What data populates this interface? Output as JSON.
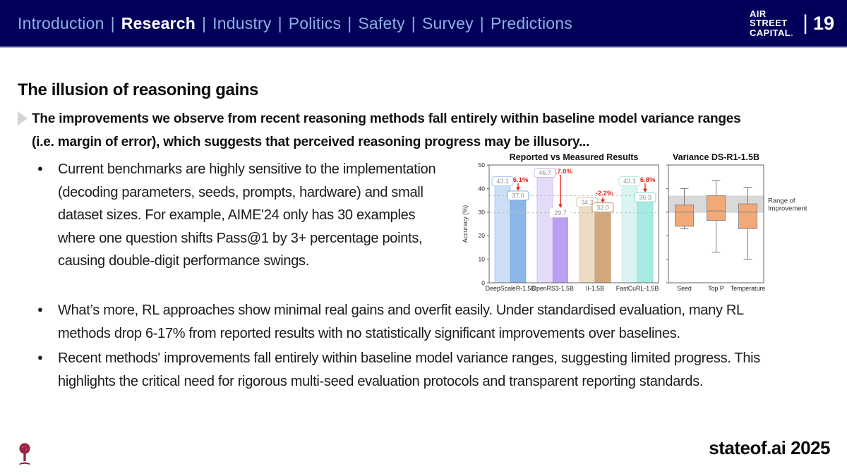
{
  "nav": {
    "items": [
      {
        "label": "Introduction",
        "active": false
      },
      {
        "label": "Research",
        "active": true
      },
      {
        "label": "Industry",
        "active": false
      },
      {
        "label": "Politics",
        "active": false
      },
      {
        "label": "Safety",
        "active": false
      },
      {
        "label": "Survey",
        "active": false
      },
      {
        "label": "Predictions",
        "active": false
      }
    ],
    "separator": "|",
    "logo_lines": [
      "AIR",
      "STREET",
      "CAPITAL"
    ],
    "logo_dot": ".",
    "page_sep": "|",
    "page_number": "19"
  },
  "slide": {
    "title": "The illusion of reasoning gains",
    "subtitle_lines": [
      "The improvements we observe from recent reasoning methods fall entirely within baseline model variance ranges",
      "(i.e. margin of error), which suggests that perceived reasoning progress may be illusory..."
    ],
    "bullets": [
      "Current benchmarks are highly sensitive to the implementation (decoding parameters, seeds, prompts, hardware) and small dataset sizes. For example, AIME'24 only has 30 examples where one question shifts Pass@1 by 3+ percentage points, causing double-digit performance swings.",
      "What’s more, RL approaches show minimal real gains and overfit easily. Under standardised evaluation, many RL methods drop 6-17% from reported results with no statistically significant improvements over baselines.",
      "Recent methods' improvements fall entirely within baseline model variance ranges, suggesting limited progress. This highlights the critical need for rigorous multi-seed evaluation protocols and transparent reporting standards."
    ]
  },
  "footer": {
    "brand": "stateof.ai 2025"
  },
  "colors": {
    "navbar_bg": "#01015a",
    "nav_inactive": "#8fafe4",
    "nav_active": "#ffffff",
    "logo_dot_orange": "#f0a132",
    "delta_red": "#e92318",
    "band_gray": "#d9d9d9",
    "box_fill": "#f2a977",
    "box_edge": "#8a8a8a",
    "whisker": "#777777",
    "tree_logo": "#9b2242"
  },
  "chart_data": [
    {
      "type": "bar",
      "title": "Reported vs Measured Results",
      "ylabel": "Accuracy (%)",
      "ylim": [
        0,
        50
      ],
      "yticks": [
        0,
        10,
        20,
        30,
        40,
        50
      ],
      "categories": [
        "DeepScaleR-1.5B",
        "OpenRS3-1.5B",
        "II-1.5B",
        "FastCuRL-1.5B"
      ],
      "series": [
        {
          "name": "Reported",
          "values": [
            43.1,
            46.7,
            34.2,
            43.1
          ]
        },
        {
          "name": "Measured",
          "values": [
            37.0,
            29.7,
            32.0,
            36.3
          ]
        }
      ],
      "deltas": [
        "-6.1%",
        "-17.0%",
        "-2.2%",
        "-6.8%"
      ],
      "dashed_lines": [
        37.0,
        29.7
      ],
      "colors": {
        "reported_fill": [
          "#cbdff5",
          "#e5dcf9",
          "#eddcc4",
          "#daf4f1"
        ],
        "reported_edge": [
          "#a8c8ee",
          "#cbbaf3",
          "#ddc298",
          "#b5eae3"
        ],
        "measured_fill": [
          "#8cb6e9",
          "#bb9ff2",
          "#d1a87b",
          "#a6ebe3"
        ],
        "measured_edge": [
          "#79a7dd",
          "#a械88ea",
          "#c0946a",
          "#85ddd3"
        ]
      }
    },
    {
      "type": "box",
      "title": "Variance DS-R1-1.5B",
      "categories": [
        "Seed",
        "Top P",
        "Temperature"
      ],
      "boxes": [
        {
          "whisker_low": 23,
          "q1": 24,
          "median": 30,
          "q3": 33,
          "whisker_high": 40
        },
        {
          "whisker_low": 13,
          "q1": 26.5,
          "median": 30.5,
          "q3": 37,
          "whisker_high": 43.5
        },
        {
          "whisker_low": 10,
          "q1": 23,
          "median": 30,
          "q3": 33.5,
          "whisker_high": 40.5
        }
      ],
      "band": {
        "from": 29.7,
        "to": 37.0,
        "label_lines": [
          "Range of",
          "Improvement"
        ]
      }
    }
  ]
}
